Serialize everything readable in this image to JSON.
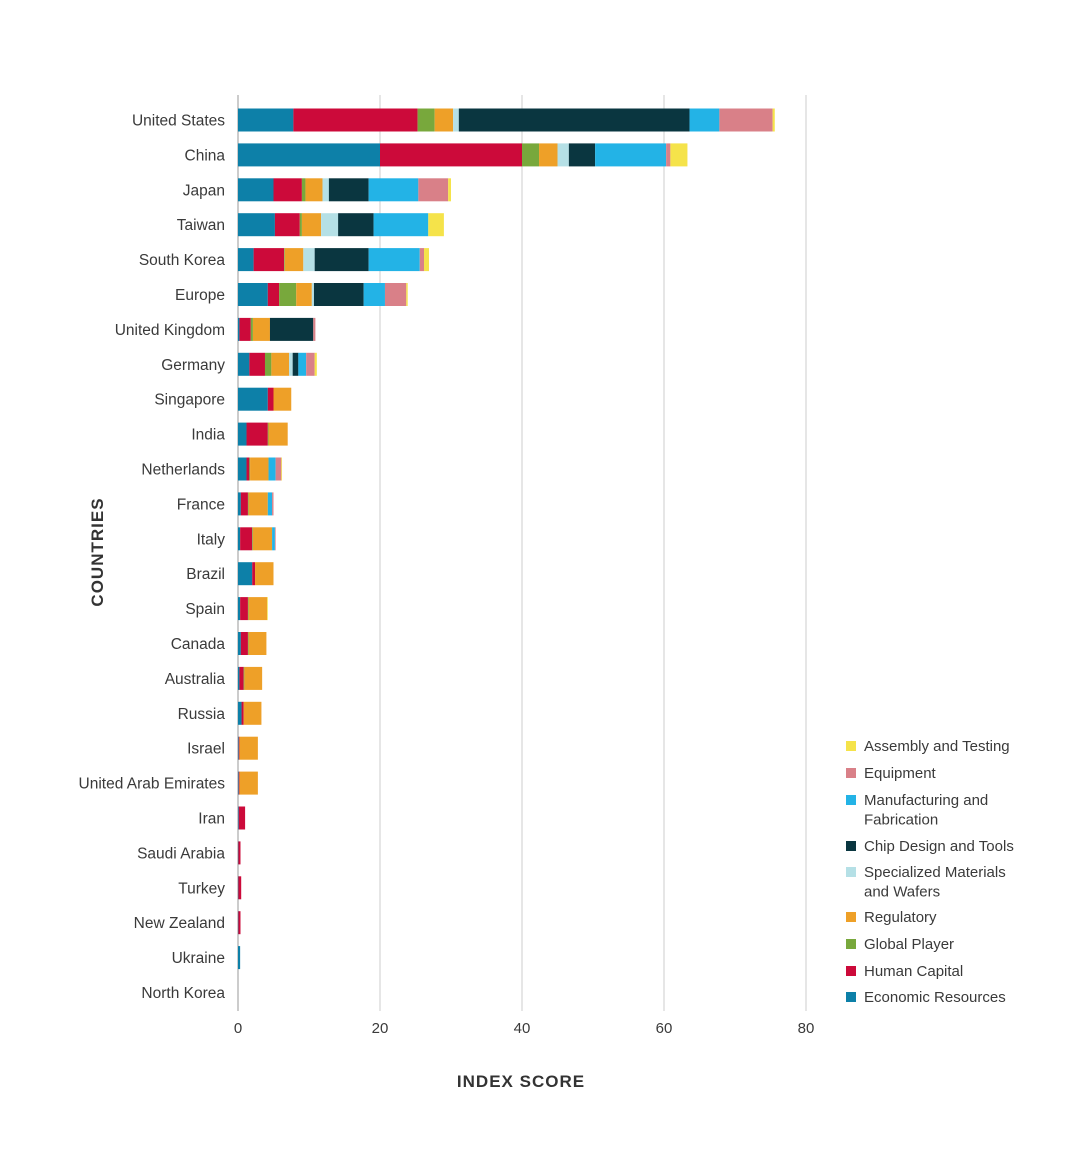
{
  "chart_data": {
    "type": "bar",
    "orientation": "horizontal",
    "stacked": true,
    "xlabel": "INDEX SCORE",
    "ylabel": "COUNTRIES",
    "xlim": [
      0,
      80
    ],
    "xticks": [
      0,
      20,
      40,
      60,
      80
    ],
    "grid": true,
    "legend_position": "bottom-right",
    "categories": [
      "United States",
      "China",
      "Japan",
      "Taiwan",
      "South Korea",
      "Europe",
      "United Kingdom",
      "Germany",
      "Singapore",
      "India",
      "Netherlands",
      "France",
      "Italy",
      "Brazil",
      "Spain",
      "Canada",
      "Australia",
      "Russia",
      "Israel",
      "United Arab Emirates",
      "Iran",
      "Saudi Arabia",
      "Turkey",
      "New Zealand",
      "Ukraine",
      "North Korea"
    ],
    "series": [
      {
        "name": "Economic Resources",
        "color": "#0d80a8",
        "values": [
          7.8,
          20.0,
          5.0,
          5.2,
          2.2,
          4.2,
          0.2,
          1.6,
          4.2,
          1.2,
          1.2,
          0.4,
          0.3,
          2.0,
          0.3,
          0.4,
          0.2,
          0.5,
          0.1,
          0.1,
          0.1,
          0.05,
          0.05,
          0.05,
          0.3,
          0.0
        ]
      },
      {
        "name": "Human Capital",
        "color": "#cc0a3a",
        "values": [
          17.5,
          20.0,
          4.0,
          3.5,
          4.3,
          1.6,
          1.6,
          2.2,
          0.8,
          3.0,
          0.4,
          1.0,
          1.7,
          0.4,
          1.1,
          1.0,
          0.6,
          0.3,
          0.1,
          0.1,
          0.9,
          0.3,
          0.4,
          0.3,
          0.0,
          0.0
        ]
      },
      {
        "name": "Global Player",
        "color": "#78a83c",
        "values": [
          2.4,
          2.4,
          0.5,
          0.3,
          0.1,
          2.4,
          0.3,
          0.9,
          0.0,
          0.1,
          0.1,
          0.1,
          0.1,
          0.0,
          0.1,
          0.1,
          0.1,
          0.0,
          0.0,
          0.0,
          0.0,
          0.0,
          0.0,
          0.0,
          0.0,
          0.0
        ]
      },
      {
        "name": "Regulatory",
        "color": "#eea028",
        "values": [
          2.6,
          2.6,
          2.4,
          2.7,
          2.6,
          2.2,
          2.4,
          2.5,
          2.5,
          2.7,
          2.6,
          2.7,
          2.7,
          2.6,
          2.6,
          2.5,
          2.5,
          2.5,
          2.6,
          2.6,
          0.0,
          0.0,
          0.0,
          0.0,
          0.0,
          0.0
        ]
      },
      {
        "name": "Specialized Materials and Wafers",
        "color": "#b5e0e6",
        "values": [
          0.8,
          1.6,
          0.9,
          2.4,
          1.6,
          0.3,
          0.0,
          0.5,
          0.0,
          0.0,
          0.0,
          0.0,
          0.0,
          0.0,
          0.0,
          0.0,
          0.0,
          0.0,
          0.0,
          0.0,
          0.0,
          0.0,
          0.0,
          0.0,
          0.0,
          0.0
        ]
      },
      {
        "name": "Chip Design and Tools",
        "color": "#0a3640",
        "values": [
          32.5,
          3.7,
          5.6,
          5.0,
          7.6,
          7.0,
          6.1,
          0.8,
          0.0,
          0.0,
          0.0,
          0.0,
          0.0,
          0.0,
          0.0,
          0.0,
          0.0,
          0.0,
          0.0,
          0.0,
          0.0,
          0.0,
          0.0,
          0.0,
          0.0,
          0.0
        ]
      },
      {
        "name": "Manufacturing and Fabrication",
        "color": "#23b3e6",
        "values": [
          4.2,
          10.0,
          7.0,
          7.7,
          7.2,
          3.0,
          0.0,
          1.1,
          0.0,
          0.0,
          1.0,
          0.6,
          0.4,
          0.0,
          0.0,
          0.0,
          0.0,
          0.0,
          0.0,
          0.0,
          0.0,
          0.0,
          0.0,
          0.0,
          0.0,
          0.0
        ]
      },
      {
        "name": "Equipment",
        "color": "#d98088",
        "values": [
          7.5,
          0.6,
          4.2,
          0.0,
          0.6,
          3.0,
          0.3,
          1.2,
          0.0,
          0.0,
          0.8,
          0.2,
          0.1,
          0.0,
          0.0,
          0.0,
          0.0,
          0.0,
          0.0,
          0.0,
          0.0,
          0.0,
          0.0,
          0.0,
          0.0,
          0.0
        ]
      },
      {
        "name": "Assembly and Testing",
        "color": "#f5e34a",
        "values": [
          0.3,
          2.4,
          0.4,
          2.2,
          0.7,
          0.2,
          0.0,
          0.3,
          0.0,
          0.0,
          0.1,
          0.0,
          0.0,
          0.0,
          0.1,
          0.0,
          0.0,
          0.0,
          0.0,
          0.0,
          0.0,
          0.0,
          0.0,
          0.0,
          0.0,
          0.0
        ]
      }
    ],
    "legend_order": [
      "Assembly and Testing",
      "Equipment",
      "Manufacturing and Fabrication",
      "Chip Design and Tools",
      "Specialized Materials and Wafers",
      "Regulatory",
      "Global Player",
      "Human Capital",
      "Economic Resources"
    ]
  }
}
